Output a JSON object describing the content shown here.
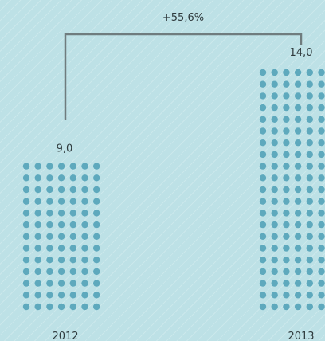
{
  "chart_data": {
    "type": "bar",
    "categories": [
      "2012",
      "2013"
    ],
    "values": [
      9.0,
      14.0
    ],
    "value_labels": [
      "9,0",
      "14,0"
    ],
    "change_label": "+55,6%",
    "title": "",
    "xlabel": "",
    "ylabel": ""
  },
  "colors": {
    "background": "#bde1e6",
    "dot": "#5ea9bd",
    "connector": "#6f7c7e",
    "text": "#2f3a3d"
  }
}
